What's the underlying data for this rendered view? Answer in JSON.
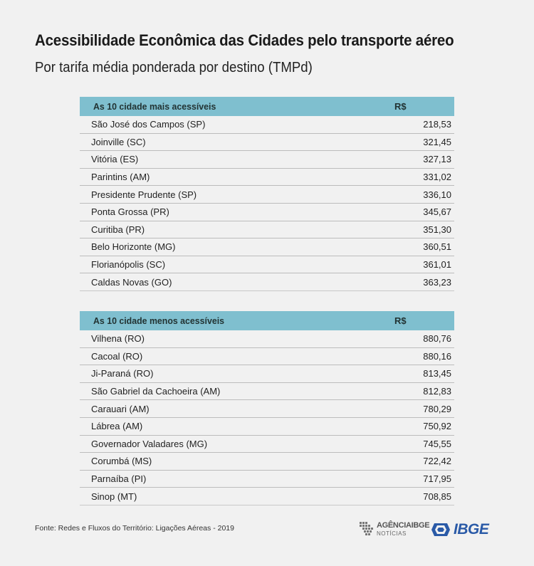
{
  "title": "Acessibilidade Econômica das Cidades pelo transporte aéreo",
  "subtitle": "Por tarifa média ponderada por destino (TMPd)",
  "footer": "Fonte: Redes e Fluxos do Território: Ligações Aéreas - 2019",
  "logos": {
    "agencia_main": "AGÊNCIAIBGE",
    "agencia_sub": "NOTÍCIAS",
    "ibge": "IBGE"
  },
  "colors": {
    "header_bg": "#7fbfcf",
    "background": "#f1f1f1",
    "ibge_blue": "#2a5aa7"
  },
  "chart_data": [
    {
      "type": "table",
      "columns": [
        "As 10 cidade mais acessíveis",
        "R$"
      ],
      "rows": [
        {
          "city": "São José dos Campos (SP)",
          "value": "218,53"
        },
        {
          "city": "Joinville (SC)",
          "value": "321,45"
        },
        {
          "city": "Vitória (ES)",
          "value": "327,13"
        },
        {
          "city": "Parintins (AM)",
          "value": "331,02"
        },
        {
          "city": "Presidente Prudente (SP)",
          "value": "336,10"
        },
        {
          "city": "Ponta Grossa (PR)",
          "value": "345,67"
        },
        {
          "city": "Curitiba (PR)",
          "value": "351,30"
        },
        {
          "city": "Belo Horizonte (MG)",
          "value": "360,51"
        },
        {
          "city": "Florianópolis (SC)",
          "value": "361,01"
        },
        {
          "city": "Caldas Novas (GO)",
          "value": "363,23"
        }
      ]
    },
    {
      "type": "table",
      "columns": [
        "As 10 cidade menos acessíveis",
        "R$"
      ],
      "rows": [
        {
          "city": "Vilhena (RO)",
          "value": "880,76"
        },
        {
          "city": "Cacoal (RO)",
          "value": "880,16"
        },
        {
          "city": "Ji-Paraná (RO)",
          "value": "813,45"
        },
        {
          "city": "São Gabriel da Cachoeira (AM)",
          "value": "812,83"
        },
        {
          "city": "Carauari (AM)",
          "value": "780,29"
        },
        {
          "city": "Lábrea (AM)",
          "value": "750,92"
        },
        {
          "city": "Governador Valadares (MG)",
          "value": "745,55"
        },
        {
          "city": "Corumbá (MS)",
          "value": "722,42"
        },
        {
          "city": "Parnaíba (PI)",
          "value": "717,95"
        },
        {
          "city": "Sinop (MT)",
          "value": "708,85"
        }
      ]
    }
  ]
}
